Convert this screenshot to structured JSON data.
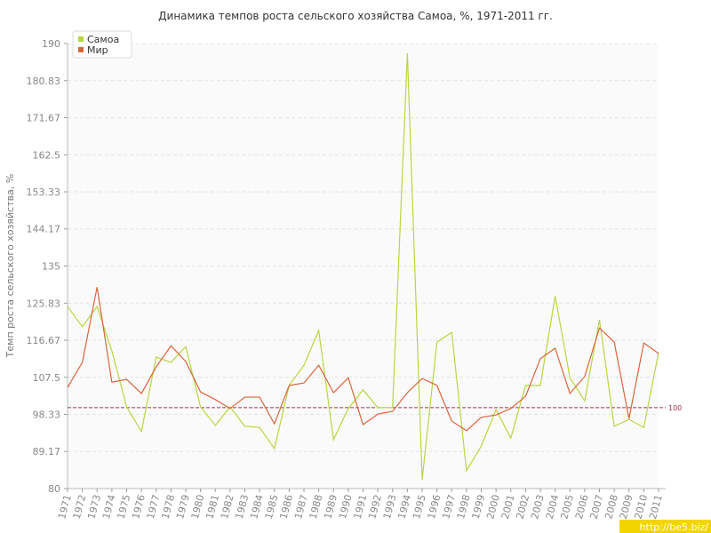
{
  "chart_data": {
    "type": "line",
    "title": "Динамика темпов роста сельского хозяйства Самоа, %, 1971-2011 гг.",
    "y_label": "Темп роста сельского хозяйства, %",
    "categories": [
      "1971",
      "1972",
      "1973",
      "1974",
      "1975",
      "1976",
      "1977",
      "1978",
      "1979",
      "1980",
      "1981",
      "1982",
      "1983",
      "1984",
      "1985",
      "1986",
      "1987",
      "1988",
      "1989",
      "1990",
      "1991",
      "1992",
      "1993",
      "1994",
      "1995",
      "1996",
      "1997",
      "1998",
      "1999",
      "2000",
      "2001",
      "2002",
      "2003",
      "2004",
      "2005",
      "2006",
      "2007",
      "2008",
      "2009",
      "2010",
      "2011"
    ],
    "series": [
      {
        "name": "Самоа",
        "color": "#b8d640",
        "values": [
          125.0,
          120.0,
          125.0,
          114.0,
          100.2,
          94.1,
          112.5,
          111.2,
          115.1,
          100.2,
          95.6,
          100.2,
          95.4,
          95.1,
          89.9,
          105.5,
          110.5,
          119.1,
          92.1,
          99.8,
          104.4,
          100.0,
          100.0,
          187.6,
          82.2,
          116.2,
          118.6,
          84.4,
          90.5,
          99.5,
          92.5,
          105.5,
          105.5,
          127.6,
          107.4,
          101.7,
          121.7,
          95.4,
          97.1,
          95.1,
          113.6
        ]
      },
      {
        "name": "Мир",
        "color": "#d9653b",
        "values": [
          105.0,
          111.2,
          129.8,
          106.3,
          107.0,
          103.5,
          110.1,
          115.3,
          111.4,
          103.9,
          102.0,
          99.8,
          102.6,
          102.6,
          96.0,
          105.5,
          106.1,
          110.5,
          103.7,
          107.4,
          95.8,
          98.4,
          99.1,
          103.7,
          107.2,
          105.5,
          96.7,
          94.3,
          97.6,
          98.2,
          99.8,
          102.8,
          112.1,
          114.7,
          103.5,
          107.7,
          119.7,
          116.2,
          97.3,
          116.0,
          113.4
        ]
      }
    ],
    "ylim": [
      80,
      190
    ],
    "yticks": [
      80,
      89.17,
      98.33,
      107.5,
      116.67,
      125.83,
      135,
      144.17,
      153.33,
      162.5,
      171.67,
      180.83,
      190
    ],
    "grid": true,
    "reference_line": 100,
    "legend": "top-left",
    "watermark": "http://be5.biz/"
  }
}
